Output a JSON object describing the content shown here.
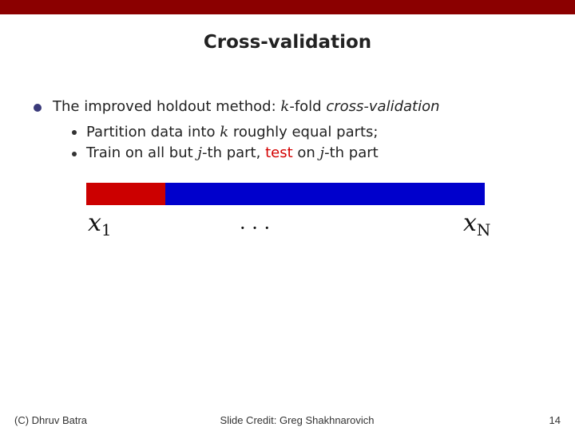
{
  "header": {
    "title": "Cross-validation"
  },
  "bullets": [
    {
      "segments": [
        "The improved holdout method: ",
        "k",
        "-fold ",
        "cross-validation"
      ],
      "children": [
        {
          "segments": [
            "Partition data into ",
            "k",
            " roughly equal parts;"
          ]
        },
        {
          "segments": [
            "Train on all but ",
            "j",
            "-th part, ",
            "test",
            " on ",
            "j",
            "-th part"
          ]
        }
      ]
    }
  ],
  "diagram": {
    "start_label": {
      "base": "x",
      "sub": "1"
    },
    "ellipsis": "· · ·",
    "end_label": {
      "base": "x",
      "sub": "N"
    }
  },
  "footer": {
    "left": "(C) Dhruv Batra",
    "center": "Slide Credit: Greg Shakhnarovich",
    "right": "14"
  }
}
